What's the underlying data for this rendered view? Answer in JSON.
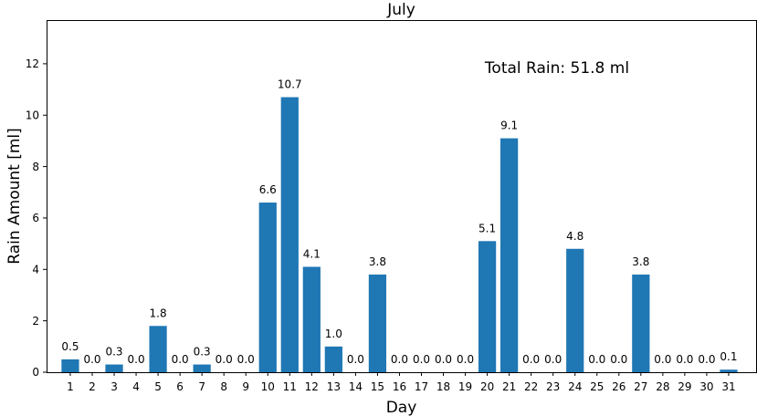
{
  "chart_data": {
    "type": "bar",
    "title": "July",
    "xlabel": "Day",
    "ylabel": "Rain Amount [ml]",
    "annotation": "Total Rain: 51.8 ml",
    "ylim": [
      0,
      13.7
    ],
    "yticks": [
      0,
      2,
      4,
      6,
      8,
      10,
      12
    ],
    "categories": [
      "1",
      "2",
      "3",
      "4",
      "5",
      "6",
      "7",
      "8",
      "9",
      "10",
      "11",
      "12",
      "13",
      "14",
      "15",
      "16",
      "17",
      "18",
      "19",
      "20",
      "21",
      "22",
      "23",
      "24",
      "25",
      "26",
      "27",
      "28",
      "29",
      "30",
      "31"
    ],
    "values": [
      0.5,
      0.0,
      0.3,
      0.0,
      1.8,
      0.0,
      0.3,
      0.0,
      0.0,
      6.6,
      10.7,
      4.1,
      1.0,
      0.0,
      3.8,
      0.0,
      0.0,
      0.0,
      0.0,
      5.1,
      9.1,
      0.0,
      0.0,
      4.8,
      0.0,
      0.0,
      3.8,
      0.0,
      0.0,
      0.0,
      0.1
    ],
    "value_labels": [
      "0.5",
      "0.0",
      "0.3",
      "0.0",
      "1.8",
      "0.0",
      "0.3",
      "0.0",
      "0.0",
      "6.6",
      "10.7",
      "4.1",
      "1.0",
      "0.0",
      "3.8",
      "0.0",
      "0.0",
      "0.0",
      "0.0",
      "5.1",
      "9.1",
      "0.0",
      "0.0",
      "4.8",
      "0.0",
      "0.0",
      "3.8",
      "0.0",
      "0.0",
      "0.0",
      "0.1"
    ],
    "bar_color": "#1f77b4",
    "grid": false,
    "legend": "none"
  }
}
